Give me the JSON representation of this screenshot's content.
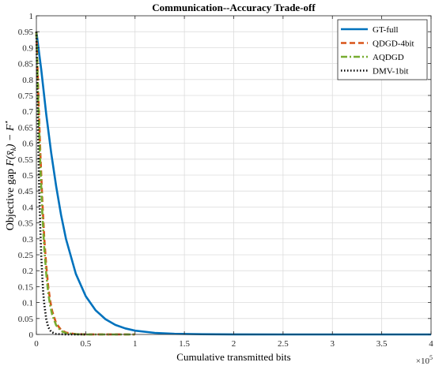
{
  "chart_data": {
    "type": "line",
    "title": "Communication--Accuracy Trade-off",
    "xlabel": "Cumulative transmitted bits",
    "ylabel": "Objective gap",
    "ylabel_math": "F(x̄",
    "ylabel_sub": "k",
    "ylabel_tail": ") − F",
    "ylabel_sup": "⋆",
    "x_exponent_base": "×10",
    "x_exponent_power": "5",
    "xlim": [
      0,
      400000
    ],
    "ylim": [
      0,
      1
    ],
    "grid": true,
    "legend_position": "top-right",
    "x_ticks": [
      0,
      0.5,
      1,
      1.5,
      2,
      2.5,
      3,
      3.5,
      4
    ],
    "x_tick_labels": [
      "0",
      "0.5",
      "1",
      "1.5",
      "2",
      "2.5",
      "3",
      "3.5",
      "4"
    ],
    "y_ticks": [
      0,
      0.05,
      0.1,
      0.15,
      0.2,
      0.25,
      0.3,
      0.35,
      0.4,
      0.45,
      0.5,
      0.55,
      0.6,
      0.65,
      0.7,
      0.75,
      0.8,
      0.85,
      0.9,
      0.95,
      1
    ],
    "y_tick_labels": [
      "0",
      "0.05",
      "0.1",
      "0.15",
      "0.2",
      "0.25",
      "0.3",
      "0.35",
      "0.4",
      "0.45",
      "0.5",
      "0.55",
      "0.6",
      "0.65",
      "0.7",
      "0.75",
      "0.8",
      "0.85",
      "0.9",
      "0.95",
      "1"
    ],
    "series": [
      {
        "name": "GT-full",
        "color": "#0072BD",
        "dash": "solid",
        "x": [
          0,
          5000,
          10000,
          15000,
          20000,
          25000,
          30000,
          40000,
          50000,
          60000,
          70000,
          80000,
          90000,
          100000,
          120000,
          140000,
          160000,
          200000,
          250000,
          300000,
          350000,
          400000
        ],
        "y": [
          0.95,
          0.83,
          0.69,
          0.57,
          0.465,
          0.375,
          0.3,
          0.19,
          0.12,
          0.076,
          0.048,
          0.03,
          0.019,
          0.012,
          0.005,
          0.002,
          0.001,
          0.0002,
          0,
          0,
          0,
          0
        ]
      },
      {
        "name": "QDGD-4bit",
        "color": "#D95319",
        "dash": "dashed",
        "x": [
          0,
          2000,
          4000,
          6000,
          8000,
          10000,
          12000,
          14000,
          16000,
          20000,
          25000,
          30000,
          40000,
          50000,
          100000
        ],
        "y": [
          0.95,
          0.75,
          0.57,
          0.42,
          0.3,
          0.215,
          0.15,
          0.105,
          0.073,
          0.035,
          0.014,
          0.006,
          0.001,
          0.0002,
          0
        ]
      },
      {
        "name": "AQDGD",
        "color": "#77AC30",
        "dash": "dashdot",
        "x": [
          0,
          2000,
          4000,
          6000,
          8000,
          10000,
          12000,
          14000,
          16000,
          20000,
          25000,
          30000,
          40000,
          50000,
          100000
        ],
        "y": [
          0.95,
          0.72,
          0.53,
          0.38,
          0.27,
          0.19,
          0.13,
          0.09,
          0.062,
          0.029,
          0.011,
          0.004,
          0.0008,
          0.0001,
          0
        ]
      },
      {
        "name": "DMV-1bit",
        "color": "#000000",
        "dash": "dotted",
        "x": [
          0,
          1000,
          2000,
          3000,
          4000,
          5000,
          6000,
          7000,
          8000,
          10000,
          12000,
          15000,
          20000,
          30000,
          50000
        ],
        "y": [
          0.95,
          0.75,
          0.58,
          0.44,
          0.33,
          0.245,
          0.18,
          0.13,
          0.095,
          0.048,
          0.023,
          0.008,
          0.0015,
          0,
          0
        ]
      }
    ]
  }
}
